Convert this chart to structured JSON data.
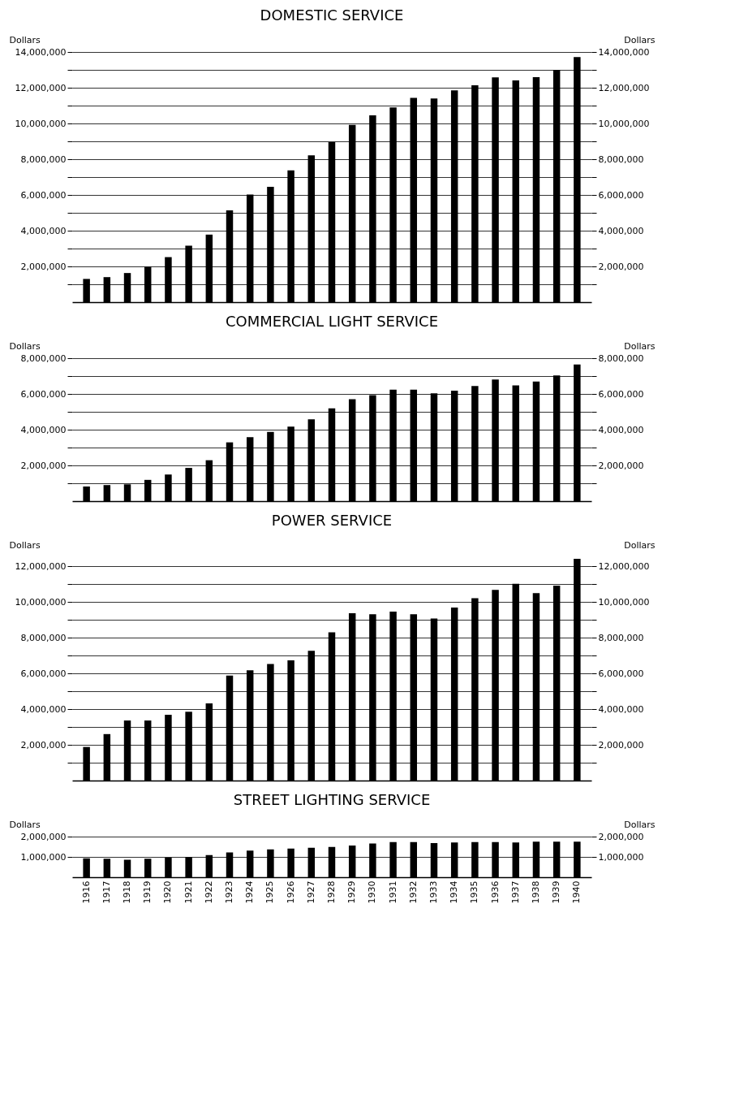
{
  "chart_data": [
    {
      "type": "bar",
      "title": "DOMESTIC SERVICE",
      "ylabel": "Dollars",
      "y2label": "Dollars",
      "categories": [
        "1916",
        "1917",
        "1918",
        "1919",
        "1920",
        "1921",
        "1922",
        "1923",
        "1924",
        "1925",
        "1926",
        "1927",
        "1928",
        "1929",
        "1930",
        "1931",
        "1932",
        "1933",
        "1934",
        "1935",
        "1936",
        "1937",
        "1938",
        "1939",
        "1940"
      ],
      "series": [
        {
          "color": "#000000",
          "values": [
            1300000,
            1400000,
            1630000,
            1980000,
            2520000,
            3160000,
            3780000,
            5140000,
            6020000,
            6450000,
            7380000,
            8220000,
            8950000,
            9920000,
            10460000,
            10900000,
            11430000,
            11400000,
            11850000,
            12140000,
            12580000,
            12410000,
            12590000,
            13000000,
            13720000
          ]
        }
      ],
      "ylim": [
        0,
        14000000
      ],
      "yticks": [
        {
          "value": 1000000,
          "label": null
        },
        {
          "value": 2000000,
          "label": "2,000,000"
        },
        {
          "value": 3000000,
          "label": null
        },
        {
          "value": 4000000,
          "label": "4,000,000"
        },
        {
          "value": 5000000,
          "label": null
        },
        {
          "value": 6000000,
          "label": "6,000,000"
        },
        {
          "value": 7000000,
          "label": null
        },
        {
          "value": 8000000,
          "label": "8,000,000"
        },
        {
          "value": 9000000,
          "label": null
        },
        {
          "value": 10000000,
          "label": "10,000,000"
        },
        {
          "value": 11000000,
          "label": null
        },
        {
          "value": 12000000,
          "label": "12,000,000"
        },
        {
          "value": 13000000,
          "label": null
        },
        {
          "value": 14000000,
          "label": "14,000,000"
        }
      ],
      "y2lim": [
        0,
        14000000
      ],
      "y2ticks": [
        {
          "value": 1000000,
          "label": null
        },
        {
          "value": 2000000,
          "label": "2,000,000"
        },
        {
          "value": 3000000,
          "label": null
        },
        {
          "value": 4000000,
          "label": "4,000,000"
        },
        {
          "value": 5000000,
          "label": null
        },
        {
          "value": 6000000,
          "label": "6,000,000"
        },
        {
          "value": 7000000,
          "label": null
        },
        {
          "value": 8000000,
          "label": "8,000,000"
        },
        {
          "value": 9000000,
          "label": null
        },
        {
          "value": 10000000,
          "label": "10,000,000"
        },
        {
          "value": 11000000,
          "label": null
        },
        {
          "value": 12000000,
          "label": "12,000,000"
        },
        {
          "value": 13000000,
          "label": null
        },
        {
          "value": 14000000,
          "label": "14,000,000"
        }
      ],
      "grid": "y",
      "tick_labels": "y"
    },
    {
      "type": "bar",
      "title": "COMMERCIAL LIGHT SERVICE",
      "ylabel": "Dollars",
      "y2label": "Dollars",
      "categories": [
        "1916",
        "1917",
        "1918",
        "1919",
        "1920",
        "1921",
        "1922",
        "1923",
        "1924",
        "1925",
        "1926",
        "1927",
        "1928",
        "1929",
        "1930",
        "1931",
        "1932",
        "1933",
        "1934",
        "1935",
        "1936",
        "1937",
        "1938",
        "1939",
        "1940"
      ],
      "series": [
        {
          "color": "#000000",
          "values": [
            820000,
            900000,
            940000,
            1190000,
            1490000,
            1860000,
            2290000,
            3290000,
            3580000,
            3870000,
            4170000,
            4580000,
            5190000,
            5710000,
            5930000,
            6240000,
            6240000,
            6030000,
            6180000,
            6440000,
            6810000,
            6480000,
            6690000,
            7030000,
            7650000
          ]
        }
      ],
      "ylim": [
        0,
        8000000
      ],
      "yticks": [
        {
          "value": 1000000,
          "label": null
        },
        {
          "value": 2000000,
          "label": "2,000,000"
        },
        {
          "value": 3000000,
          "label": null
        },
        {
          "value": 4000000,
          "label": "4,000,000"
        },
        {
          "value": 5000000,
          "label": null
        },
        {
          "value": 6000000,
          "label": "6,000,000"
        },
        {
          "value": 7000000,
          "label": null
        },
        {
          "value": 8000000,
          "label": "8,000,000"
        }
      ],
      "y2lim": [
        0,
        8000000
      ],
      "y2ticks": [
        {
          "value": 1000000,
          "label": null
        },
        {
          "value": 2000000,
          "label": "2,000,000"
        },
        {
          "value": 3000000,
          "label": null
        },
        {
          "value": 4000000,
          "label": "4,000,000"
        },
        {
          "value": 5000000,
          "label": null
        },
        {
          "value": 6000000,
          "label": "6,000,000"
        },
        {
          "value": 7000000,
          "label": null
        },
        {
          "value": 8000000,
          "label": "8,000,000"
        }
      ],
      "grid": "y",
      "tick_labels": "y"
    },
    {
      "type": "bar",
      "title": "POWER SERVICE",
      "ylabel": "Dollars",
      "y2label": "Dollars",
      "categories": [
        "1916",
        "1917",
        "1918",
        "1919",
        "1920",
        "1921",
        "1922",
        "1923",
        "1924",
        "1925",
        "1926",
        "1927",
        "1928",
        "1929",
        "1930",
        "1931",
        "1932",
        "1933",
        "1934",
        "1935",
        "1936",
        "1937",
        "1938",
        "1939",
        "1940"
      ],
      "series": [
        {
          "color": "#000000",
          "values": [
            1880000,
            2600000,
            3360000,
            3360000,
            3680000,
            3850000,
            4320000,
            5870000,
            6170000,
            6520000,
            6730000,
            7260000,
            8290000,
            9360000,
            9310000,
            9450000,
            9310000,
            9070000,
            9680000,
            10200000,
            10670000,
            11010000,
            10490000,
            10910000,
            12410000
          ]
        }
      ],
      "ylim": [
        0,
        12500000
      ],
      "yticks": [
        {
          "value": 1000000,
          "label": null
        },
        {
          "value": 2000000,
          "label": "2,000,000"
        },
        {
          "value": 3000000,
          "label": null
        },
        {
          "value": 4000000,
          "label": "4,000,000"
        },
        {
          "value": 5000000,
          "label": null
        },
        {
          "value": 6000000,
          "label": "6,000,000"
        },
        {
          "value": 7000000,
          "label": null
        },
        {
          "value": 8000000,
          "label": "8,000,000"
        },
        {
          "value": 9000000,
          "label": null
        },
        {
          "value": 10000000,
          "label": "10,000,000"
        },
        {
          "value": 11000000,
          "label": null
        },
        {
          "value": 12000000,
          "label": "12,000,000"
        }
      ],
      "y2lim": [
        0,
        12500000
      ],
      "y2ticks": [
        {
          "value": 1000000,
          "label": null
        },
        {
          "value": 2000000,
          "label": "2,000,000"
        },
        {
          "value": 3000000,
          "label": null
        },
        {
          "value": 4000000,
          "label": "4,000,000"
        },
        {
          "value": 5000000,
          "label": null
        },
        {
          "value": 6000000,
          "label": "6,000,000"
        },
        {
          "value": 7000000,
          "label": null
        },
        {
          "value": 8000000,
          "label": "8,000,000"
        },
        {
          "value": 9000000,
          "label": null
        },
        {
          "value": 10000000,
          "label": "10,000,000"
        },
        {
          "value": 11000000,
          "label": null
        },
        {
          "value": 12000000,
          "label": "12,000,000"
        }
      ],
      "grid": "y",
      "tick_labels": "y"
    },
    {
      "type": "bar",
      "title": "STREET LIGHTING SERVICE",
      "ylabel": "Dollars",
      "y2label": "Dollars",
      "categories": [
        "1916",
        "1917",
        "1918",
        "1919",
        "1920",
        "1921",
        "1922",
        "1923",
        "1924",
        "1925",
        "1926",
        "1927",
        "1928",
        "1929",
        "1930",
        "1931",
        "1932",
        "1933",
        "1934",
        "1935",
        "1936",
        "1937",
        "1938",
        "1939",
        "1940"
      ],
      "series": [
        {
          "color": "#000000",
          "values": [
            930000,
            910000,
            860000,
            910000,
            970000,
            990000,
            1090000,
            1220000,
            1310000,
            1370000,
            1410000,
            1450000,
            1490000,
            1560000,
            1660000,
            1730000,
            1730000,
            1680000,
            1710000,
            1730000,
            1730000,
            1710000,
            1750000,
            1750000,
            1750000
          ]
        }
      ],
      "ylim": [
        0,
        2000000
      ],
      "yticks": [
        {
          "value": 1000000,
          "label": "1,000,000"
        },
        {
          "value": 2000000,
          "label": "2,000,000"
        }
      ],
      "y2lim": [
        0,
        2000000
      ],
      "y2ticks": [
        {
          "value": 1000000,
          "label": "1,000,000"
        },
        {
          "value": 2000000,
          "label": "2,000,000"
        }
      ],
      "grid": "y"
    }
  ]
}
